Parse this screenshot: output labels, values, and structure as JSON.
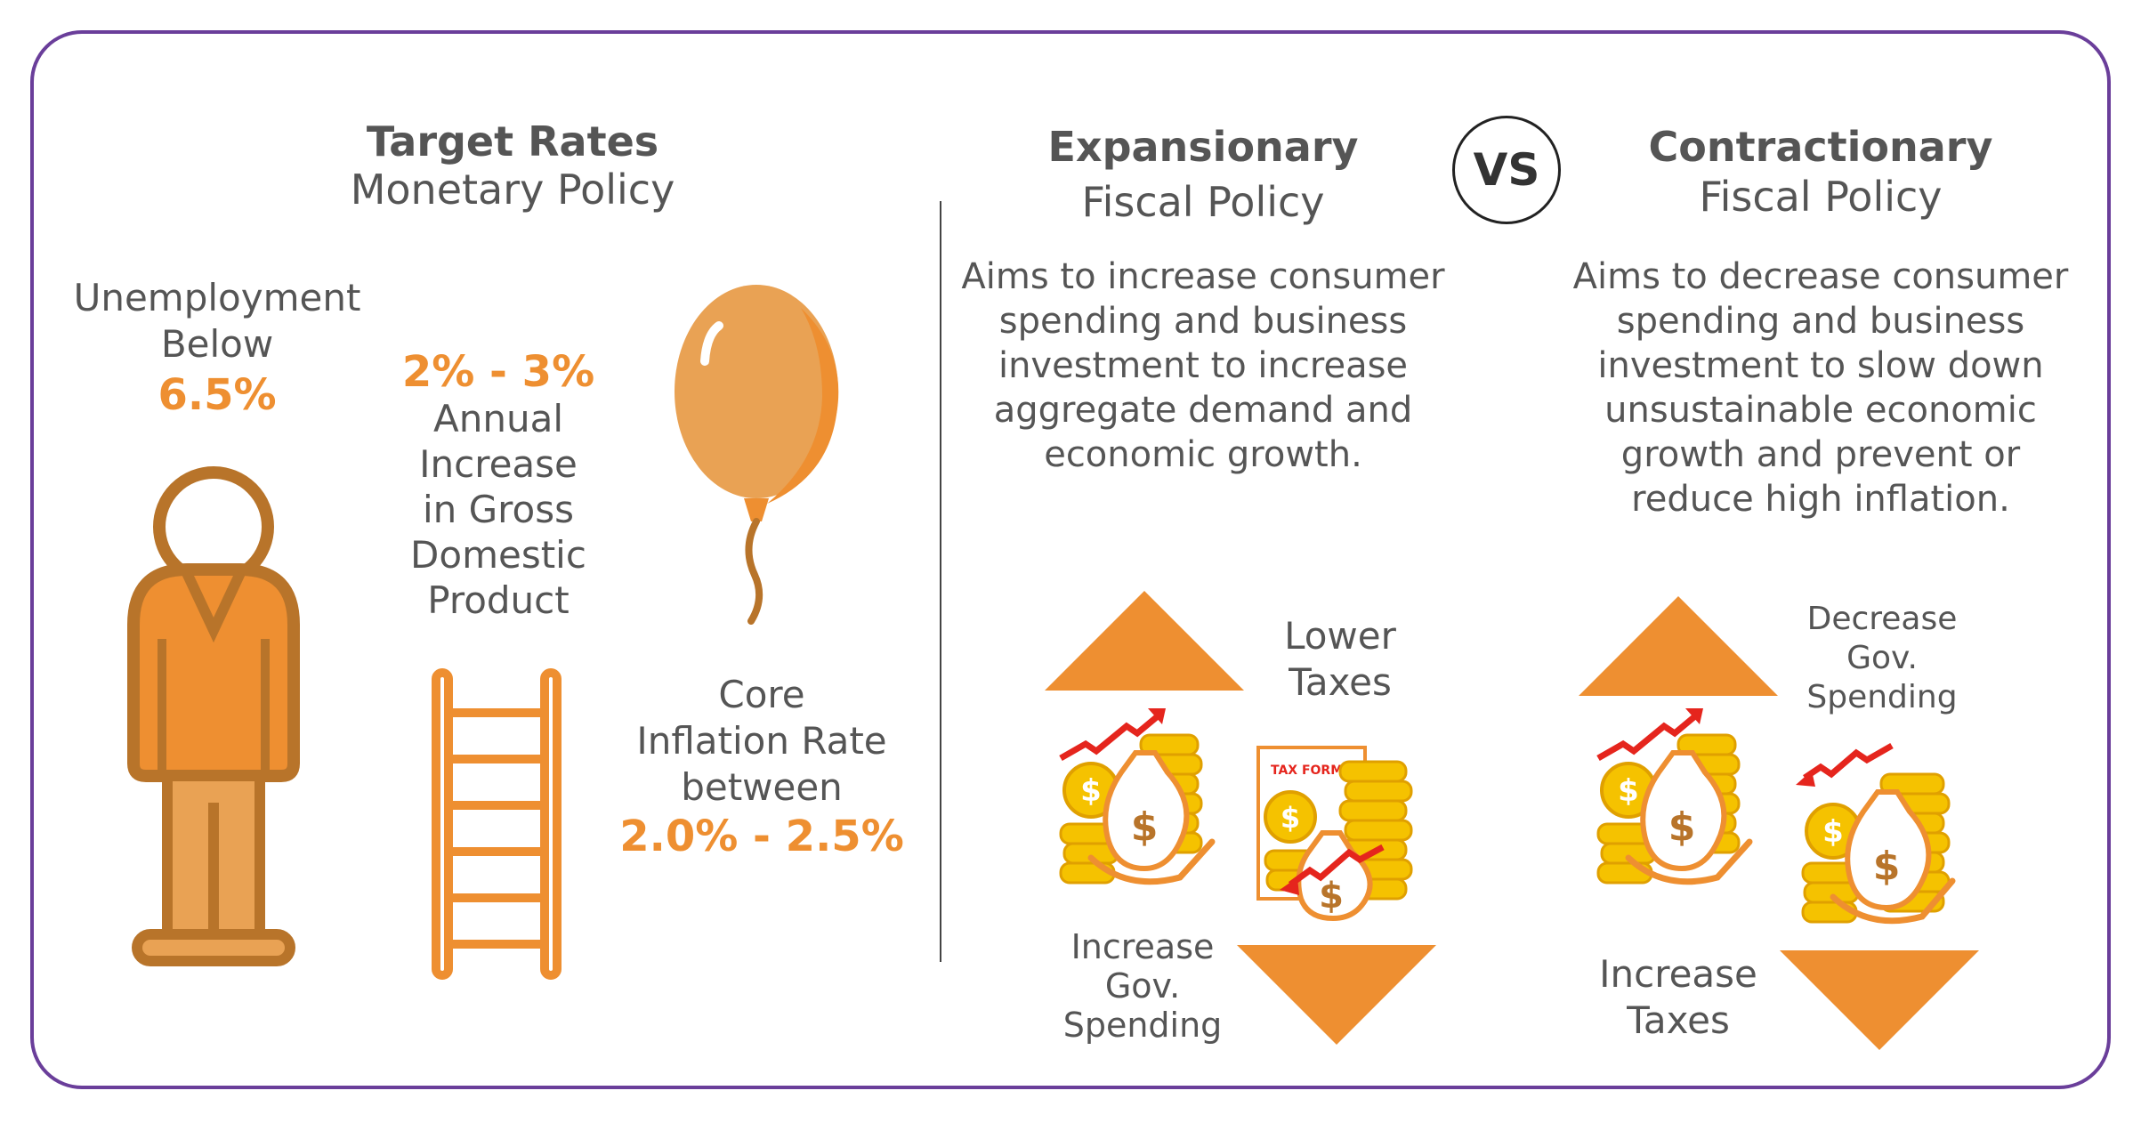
{
  "monetary": {
    "title": "Target Rates",
    "subtitle": "Monetary Policy",
    "unemployment": {
      "label_line1": "Unemployment",
      "label_line2": "Below",
      "value": "6.5%"
    },
    "gdp": {
      "value": "2% - 3%",
      "lines": [
        "Annual",
        "Increase",
        "in Gross",
        "Domestic",
        "Product"
      ]
    },
    "inflation": {
      "lines": [
        "Core",
        "Inflation Rate",
        "between"
      ],
      "value": "2.0% - 2.5%"
    }
  },
  "vs_label": "VS",
  "expansionary": {
    "title": "Expansionary",
    "subtitle": "Fiscal Policy",
    "description": [
      "Aims to increase consumer",
      "spending and business",
      "investment to increase",
      "aggregate demand and",
      "economic growth."
    ],
    "up_label": [
      "Lower",
      "Taxes"
    ],
    "down_label": [
      "Increase",
      "Gov.",
      "Spending"
    ],
    "tax_form_label": "TAX FORM"
  },
  "contractionary": {
    "title": "Contractionary",
    "subtitle": "Fiscal Policy",
    "description": [
      "Aims to decrease consumer",
      "spending and business",
      "investment to slow down",
      "unsustainable economic",
      "growth and prevent or",
      "reduce high inflation."
    ],
    "up_label": [
      "Decrease",
      "Gov.",
      "Spending"
    ],
    "down_label": [
      "Increase",
      "Taxes"
    ]
  },
  "colors": {
    "orange": "#ee8f31",
    "brown": "#b8742a",
    "light_orange": "#e9a254",
    "gold": "#f5c200",
    "red": "#e5251d",
    "purple": "#6a3e9a"
  },
  "icons": [
    "person-icon",
    "ladder-icon",
    "balloon-icon",
    "money-bag-icon",
    "coin-stack-icon",
    "tax-form-icon",
    "up-arrow-icon",
    "down-arrow-icon"
  ]
}
